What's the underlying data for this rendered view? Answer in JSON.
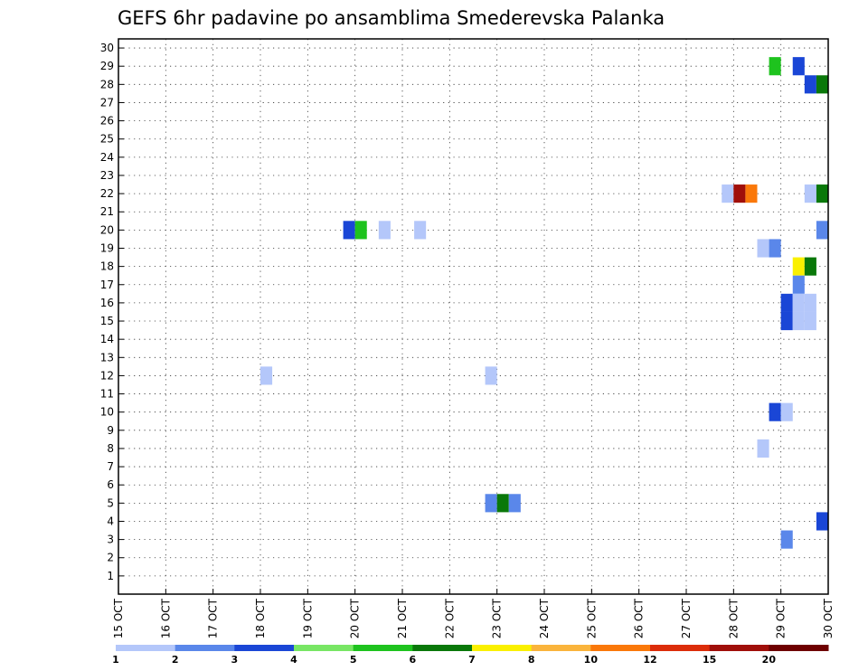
{
  "chart_data": {
    "type": "heatmap",
    "title": "GEFS 6hr padavine po ansamblima Smederevska Palanka",
    "xlabel": "",
    "ylabel": "",
    "x_ticks": [
      "15 OCT",
      "16 OCT",
      "17 OCT",
      "18 OCT",
      "19 OCT",
      "20 OCT",
      "21 OCT",
      "22 OCT",
      "23 OCT",
      "24 OCT",
      "25 OCT",
      "26 OCT",
      "27 OCT",
      "28 OCT",
      "29 OCT",
      "30 OCT"
    ],
    "y_ticks": [
      1,
      2,
      3,
      4,
      5,
      6,
      7,
      8,
      9,
      10,
      11,
      12,
      13,
      14,
      15,
      16,
      17,
      18,
      19,
      20,
      21,
      22,
      23,
      24,
      25,
      26,
      27,
      28,
      29,
      30
    ],
    "ylim": [
      0,
      30.5
    ],
    "x_range_days": [
      0,
      15
    ],
    "grid": "dotted",
    "levels": [
      1,
      2,
      3,
      4,
      5,
      6,
      7,
      8,
      10,
      12,
      15,
      20
    ],
    "colors": [
      "#b4c7fa",
      "#5a87ea",
      "#1a46d6",
      "#78e664",
      "#1ec31e",
      "#0a780a",
      "#faf000",
      "#fab43c",
      "#fa780a",
      "#dc2d0a",
      "#a00f0a",
      "#6e0000"
    ],
    "cells": [
      {
        "member": 29,
        "day": 13.75,
        "value": 5
      },
      {
        "member": 29,
        "day": 14.25,
        "value": 3
      },
      {
        "member": 28,
        "day": 14.5,
        "value": 3
      },
      {
        "member": 28,
        "day": 14.75,
        "value": 6
      },
      {
        "member": 22,
        "day": 12.75,
        "value": 1
      },
      {
        "member": 22,
        "day": 13.0,
        "value": 15
      },
      {
        "member": 22,
        "day": 13.25,
        "value": 10
      },
      {
        "member": 22,
        "day": 14.5,
        "value": 1
      },
      {
        "member": 22,
        "day": 14.75,
        "value": 6
      },
      {
        "member": 20,
        "day": 4.75,
        "value": 3
      },
      {
        "member": 20,
        "day": 5.0,
        "value": 5
      },
      {
        "member": 20,
        "day": 5.5,
        "value": 1
      },
      {
        "member": 20,
        "day": 6.25,
        "value": 1
      },
      {
        "member": 20,
        "day": 14.75,
        "value": 2
      },
      {
        "member": 19,
        "day": 13.5,
        "value": 1
      },
      {
        "member": 19,
        "day": 13.75,
        "value": 2
      },
      {
        "member": 18,
        "day": 14.25,
        "value": 7
      },
      {
        "member": 18,
        "day": 14.5,
        "value": 6
      },
      {
        "member": 17,
        "day": 14.25,
        "value": 2
      },
      {
        "member": 16,
        "day": 14.0,
        "value": 3
      },
      {
        "member": 16,
        "day": 14.25,
        "value": 1
      },
      {
        "member": 16,
        "day": 14.5,
        "value": 1
      },
      {
        "member": 15,
        "day": 14.0,
        "value": 3
      },
      {
        "member": 15,
        "day": 14.25,
        "value": 1
      },
      {
        "member": 15,
        "day": 14.5,
        "value": 1
      },
      {
        "member": 12,
        "day": 3.0,
        "value": 1
      },
      {
        "member": 12,
        "day": 7.75,
        "value": 1
      },
      {
        "member": 10,
        "day": 13.75,
        "value": 3
      },
      {
        "member": 10,
        "day": 14.0,
        "value": 1
      },
      {
        "member": 8,
        "day": 13.5,
        "value": 1
      },
      {
        "member": 5,
        "day": 7.75,
        "value": 2
      },
      {
        "member": 5,
        "day": 8.0,
        "value": 6
      },
      {
        "member": 5,
        "day": 8.25,
        "value": 2
      },
      {
        "member": 4,
        "day": 14.75,
        "value": 3
      },
      {
        "member": 3,
        "day": 14.0,
        "value": 2
      }
    ]
  }
}
